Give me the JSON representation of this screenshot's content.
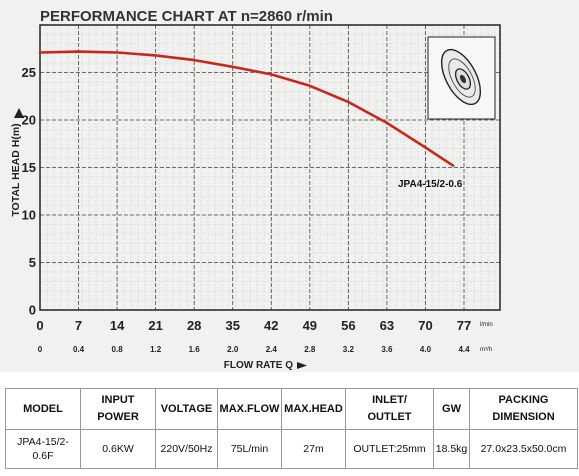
{
  "chart_data": {
    "type": "line",
    "title": "PERFORMANCE CHART AT n=2860 r/min",
    "xlabel": "FLOW RATE Q",
    "ylabel": "TOTAL HEAD H(m)",
    "x_ticks_lmin": [
      "0",
      "7",
      "14",
      "21",
      "28",
      "35",
      "42",
      "49",
      "56",
      "63",
      "70",
      "77"
    ],
    "x_ticks_m3h": [
      "0",
      "0.4",
      "0.8",
      "1.2",
      "1.6",
      "2.0",
      "2.4",
      "2.8",
      "3.2",
      "3.6",
      "4.0",
      "4.4"
    ],
    "x_unit_lmin": "l/min",
    "x_unit_m3h": "m³/h",
    "y_ticks": [
      "0",
      "5",
      "10",
      "15",
      "20",
      "25"
    ],
    "xlim": [
      0,
      80
    ],
    "ylim": [
      0,
      30
    ],
    "grid": true,
    "series": [
      {
        "name": "JPA4-15/2-0.6",
        "color": "#c8281e",
        "x": [
          0,
          7,
          14,
          21,
          28,
          35,
          42,
          49,
          56,
          63,
          70,
          75
        ],
        "y": [
          27.1,
          27.2,
          27.1,
          26.8,
          26.3,
          25.6,
          24.8,
          23.6,
          21.9,
          19.7,
          17.1,
          15.2
        ]
      }
    ]
  },
  "table": {
    "headers": [
      [
        "MODEL"
      ],
      [
        "INPUT",
        "POWER"
      ],
      [
        "VOLTAGE"
      ],
      [
        "MAX.FLOW"
      ],
      [
        "MAX.HEAD"
      ],
      [
        "INLET/",
        "OUTLET"
      ],
      [
        "GW"
      ],
      [
        "PACKING",
        "DIMENSION"
      ]
    ],
    "rows": [
      [
        "JPA4-15/2-0.6F",
        "0.6KW",
        "220V/50Hz",
        "75L/min",
        "27m",
        "OUTLET:25mm",
        "18.5kg",
        "27.0x23.5x50.0cm"
      ]
    ]
  },
  "icons": {
    "inset": "impeller-icon"
  }
}
